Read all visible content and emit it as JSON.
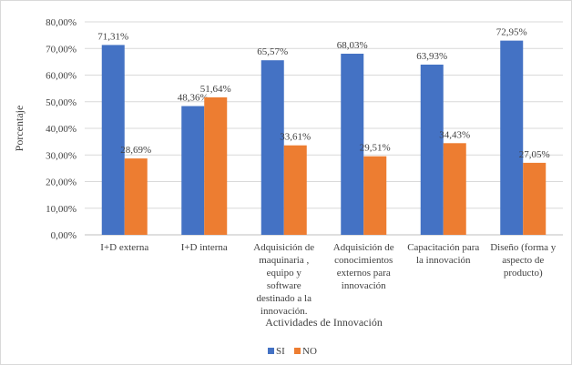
{
  "chart_data": {
    "type": "bar",
    "categories": [
      [
        "I+D externa"
      ],
      [
        "I+D interna"
      ],
      [
        "Adquisición de",
        "maquinaria ,",
        "equipo  y",
        "software",
        "destinado a la",
        "innovación."
      ],
      [
        "Adquisición de",
        "conocimientos",
        "externos para",
        "innovación"
      ],
      [
        "Capacitación para",
        "la innovación"
      ],
      [
        "Diseño (forma y",
        "aspecto de",
        "producto)"
      ]
    ],
    "series": [
      {
        "name": "SI",
        "color": "#4472C4",
        "values": [
          71.31,
          48.36,
          65.57,
          68.03,
          63.93,
          72.95
        ],
        "labels": [
          "71,31%",
          "48,36%",
          "65,57%",
          "68,03%",
          "63,93%",
          "72,95%"
        ]
      },
      {
        "name": "NO",
        "color": "#ED7D31",
        "values": [
          28.69,
          51.64,
          33.61,
          29.51,
          34.43,
          27.05
        ],
        "labels": [
          "28,69%",
          "51,64%",
          "33,61%",
          "29,51%",
          "34,43%",
          "27,05%"
        ]
      }
    ],
    "yticks": [
      "0,00%",
      "10,00%",
      "20,00%",
      "30,00%",
      "40,00%",
      "50,00%",
      "60,00%",
      "70,00%",
      "80,00%"
    ],
    "ylim": [
      0,
      80
    ],
    "ylabel": "Porcentaje",
    "xlabel": "Actividades de Innovación",
    "grid": true,
    "legend_position": "bottom"
  }
}
